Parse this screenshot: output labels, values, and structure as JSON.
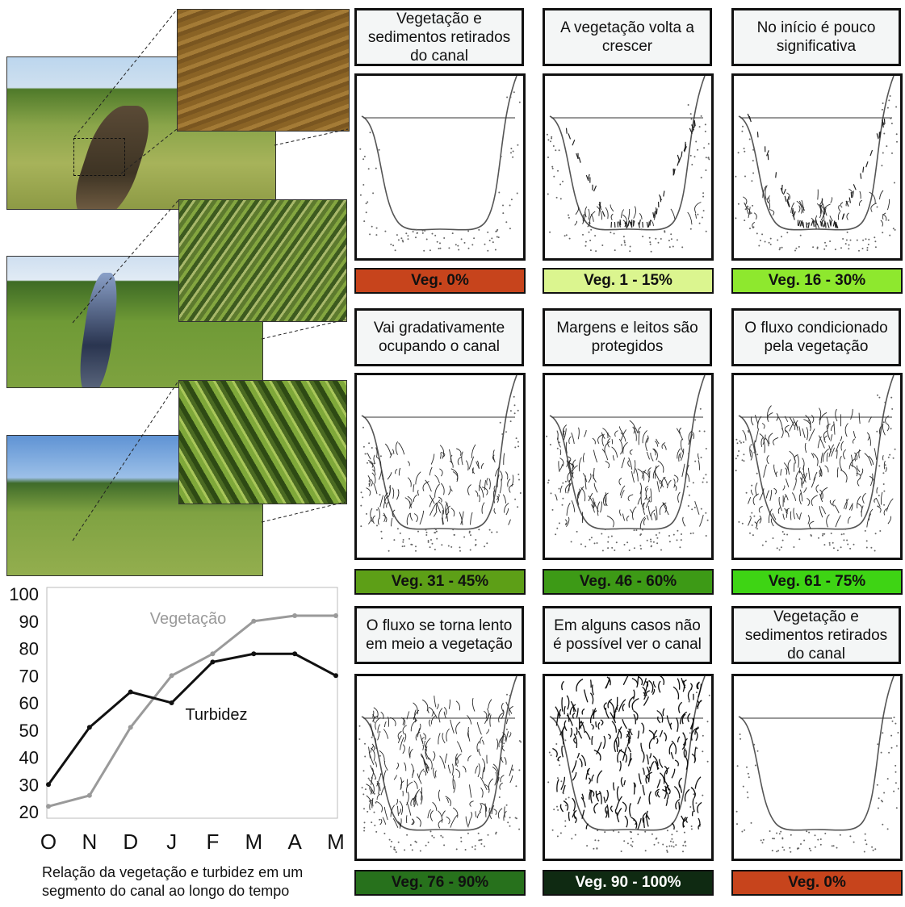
{
  "panels": [
    {
      "title": "Vegetação e sedimentos retirados do canal",
      "veg_label": "Veg. 0%",
      "bar_color": "#c7441c",
      "text_color": "#111111",
      "vegetation_level": 0
    },
    {
      "title": "A vegetação volta a crescer",
      "veg_label": "Veg. 1 - 15%",
      "bar_color": "#dbf58f",
      "text_color": "#111111",
      "vegetation_level": 0.1
    },
    {
      "title": "No início é pouco significativa",
      "veg_label": "Veg. 16 - 30%",
      "bar_color": "#8ee82e",
      "text_color": "#111111",
      "vegetation_level": 0.2
    },
    {
      "title": "Vai gradativamente ocupando o canal",
      "veg_label": "Veg. 31 - 45%",
      "bar_color": "#5d9f17",
      "text_color": "#111111",
      "vegetation_level": 0.5
    },
    {
      "title": "Margens e leitos são protegidos",
      "veg_label": "Veg. 46 - 60%",
      "bar_color": "#3d9a16",
      "text_color": "#111111",
      "vegetation_level": 0.65
    },
    {
      "title": "O fluxo condicionado pela vegetação",
      "veg_label": "Veg. 61 - 75%",
      "bar_color": "#3ed414",
      "text_color": "#111111",
      "vegetation_level": 0.75
    },
    {
      "title": "O fluxo se torna lento em meio a vegetação",
      "veg_label": "Veg. 76 - 90%",
      "bar_color": "#27711c",
      "text_color": "#111111",
      "vegetation_level": 0.85
    },
    {
      "title": "Em alguns casos não é possível ver o canal",
      "veg_label": "Veg. 90 - 100%",
      "bar_color": "#0f2a12",
      "text_color": "#ffffff",
      "vegetation_level": 1
    },
    {
      "title": "Vegetação e sedimentos retirados do canal",
      "veg_label": "Veg. 0%",
      "bar_color": "#c7441c",
      "text_color": "#111111",
      "vegetation_level": 0
    }
  ],
  "chart_data": {
    "type": "line",
    "categories": [
      "O",
      "N",
      "D",
      "J",
      "F",
      "M",
      "A",
      "M"
    ],
    "y_ticks": [
      20,
      30,
      40,
      50,
      60,
      70,
      80,
      90,
      100
    ],
    "ylim": [
      20,
      100
    ],
    "series": [
      {
        "name": "Vegetação",
        "color": "#9a9a9a",
        "values": [
          22,
          26,
          51,
          70,
          78,
          90,
          92,
          92
        ]
      },
      {
        "name": "Turbidez",
        "color": "#111111",
        "values": [
          30,
          51,
          64,
          60,
          75,
          78,
          78,
          70
        ]
      }
    ],
    "grid": false
  },
  "caption": "Relação da vegetação e turbidez em um segmento do canal ao longo do tempo"
}
